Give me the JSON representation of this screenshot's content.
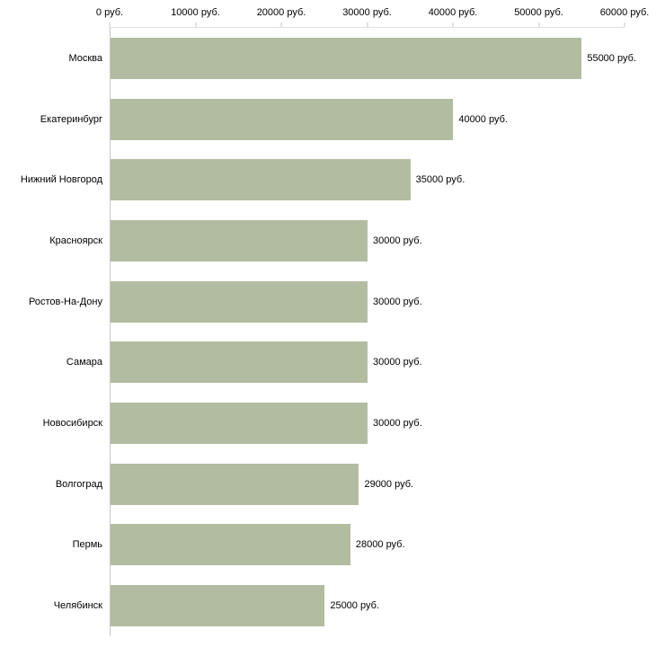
{
  "chart_data": {
    "type": "bar",
    "orientation": "horizontal",
    "title": "",
    "xlabel": "",
    "ylabel": "",
    "grid": false,
    "legend": false,
    "bar_color": "#b2bca0",
    "axis_color": "#c6c6c6",
    "text_color": "#000000",
    "categories": [
      "Москва",
      "Екатеринбург",
      "Нижний Новгород",
      "Красноярск",
      "Ростов-На-Дону",
      "Самара",
      "Новосибирск",
      "Волгоград",
      "Пермь",
      "Челябинск"
    ],
    "values": [
      55000,
      40000,
      35000,
      30000,
      30000,
      30000,
      30000,
      29000,
      28000,
      25000
    ],
    "value_labels": [
      "55000 руб.",
      "40000 руб.",
      "35000 руб.",
      "30000 руб.",
      "30000 руб.",
      "30000 руб.",
      "30000 руб.",
      "29000 руб.",
      "28000 руб.",
      "25000 руб."
    ],
    "x_axis": {
      "position": "top",
      "min": 0,
      "max": 60000,
      "ticks": [
        0,
        10000,
        20000,
        30000,
        40000,
        50000,
        60000
      ],
      "tick_labels": [
        "0 руб.",
        "10000 руб.",
        "20000 руб.",
        "30000 руб.",
        "40000 руб.",
        "50000 руб.",
        "60000 руб."
      ]
    }
  }
}
